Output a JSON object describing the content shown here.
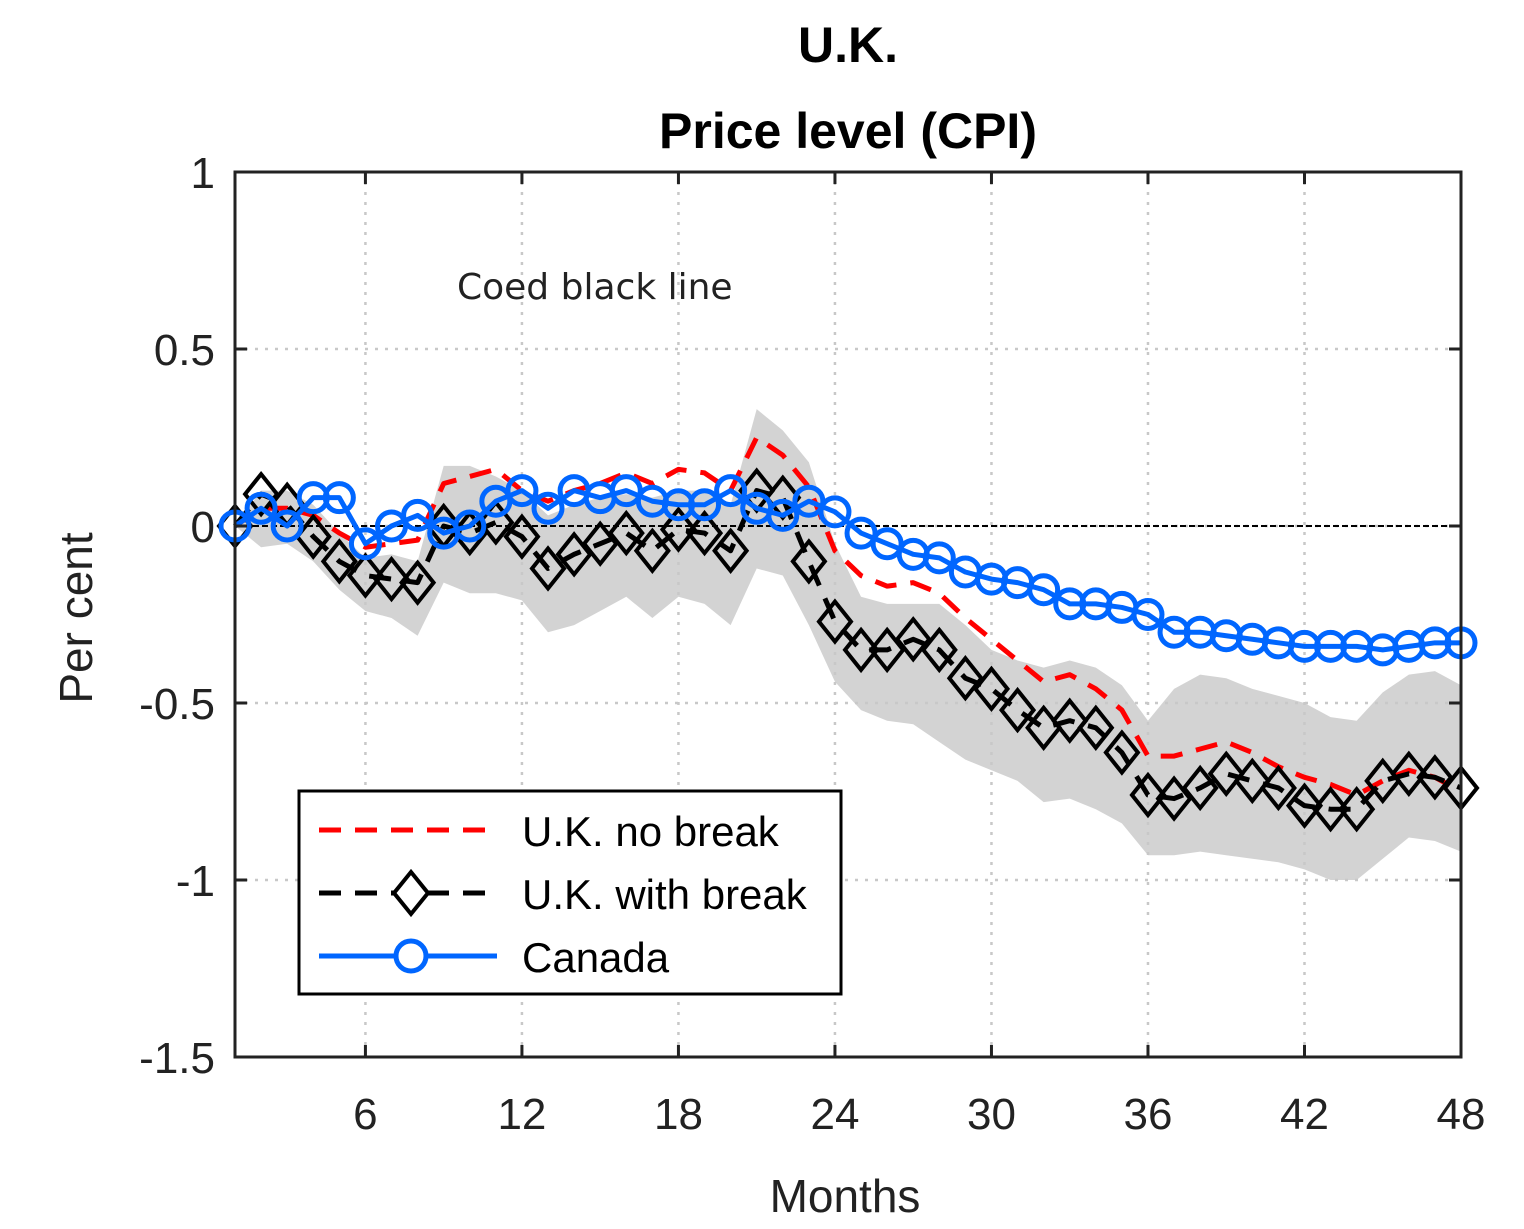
{
  "chart_data": {
    "type": "line",
    "title": [
      "U.K.",
      "Price level (CPI)"
    ],
    "xlabel": "Months",
    "ylabel": "Per cent",
    "xlim": [
      1,
      48
    ],
    "ylim": [
      -1.5,
      1
    ],
    "xticks": [
      6,
      12,
      18,
      24,
      30,
      36,
      42,
      48
    ],
    "yticks": [
      1,
      0.5,
      0,
      -0.5,
      -1,
      -1.5
    ],
    "ytick_labels": [
      "1",
      "0.5",
      "0",
      "-0.5",
      "-1",
      "-1.5"
    ],
    "grid": true,
    "legend_position": "bottom-left",
    "annotation": "Coed black line",
    "x": [
      1,
      2,
      3,
      4,
      5,
      6,
      7,
      8,
      9,
      10,
      11,
      12,
      13,
      14,
      15,
      16,
      17,
      18,
      19,
      20,
      21,
      22,
      23,
      24,
      25,
      26,
      27,
      28,
      29,
      30,
      31,
      32,
      33,
      34,
      35,
      36,
      37,
      38,
      39,
      40,
      41,
      42,
      43,
      44,
      45,
      46,
      47,
      48
    ],
    "band": {
      "color": "#d3d3d3",
      "upper": [
        0.0,
        0.1,
        0.1,
        0.06,
        -0.02,
        -0.09,
        -0.08,
        -0.1,
        0.17,
        0.17,
        0.14,
        0.1,
        0.03,
        0.06,
        0.08,
        0.09,
        0.08,
        0.1,
        0.1,
        0.06,
        0.33,
        0.27,
        0.18,
        -0.05,
        -0.2,
        -0.22,
        -0.22,
        -0.22,
        -0.28,
        -0.35,
        -0.38,
        -0.4,
        -0.38,
        -0.4,
        -0.45,
        -0.55,
        -0.46,
        -0.42,
        -0.43,
        -0.46,
        -0.48,
        -0.5,
        -0.54,
        -0.55,
        -0.47,
        -0.42,
        -0.41,
        -0.45
      ],
      "lower": [
        0.0,
        -0.06,
        -0.05,
        -0.1,
        -0.18,
        -0.24,
        -0.26,
        -0.31,
        -0.16,
        -0.19,
        -0.19,
        -0.21,
        -0.3,
        -0.28,
        -0.24,
        -0.2,
        -0.26,
        -0.2,
        -0.22,
        -0.28,
        -0.12,
        -0.14,
        -0.28,
        -0.44,
        -0.52,
        -0.55,
        -0.56,
        -0.61,
        -0.66,
        -0.69,
        -0.72,
        -0.78,
        -0.77,
        -0.8,
        -0.84,
        -0.93,
        -0.93,
        -0.92,
        -0.93,
        -0.94,
        -0.95,
        -0.97,
        -1.0,
        -1.0,
        -0.94,
        -0.88,
        -0.89,
        -0.92
      ]
    },
    "zero_line": 0,
    "series": [
      {
        "name": "U.K. no break",
        "color": "#ff0000",
        "style": "dashed",
        "marker": "none",
        "values": [
          0.0,
          0.05,
          0.05,
          0.03,
          -0.02,
          -0.06,
          -0.05,
          -0.04,
          0.12,
          0.14,
          0.16,
          0.1,
          0.07,
          0.1,
          0.12,
          0.15,
          0.12,
          0.16,
          0.15,
          0.1,
          0.25,
          0.2,
          0.11,
          -0.07,
          -0.14,
          -0.17,
          -0.16,
          -0.19,
          -0.26,
          -0.32,
          -0.38,
          -0.44,
          -0.42,
          -0.46,
          -0.52,
          -0.65,
          -0.65,
          -0.63,
          -0.61,
          -0.64,
          -0.68,
          -0.71,
          -0.73,
          -0.76,
          -0.72,
          -0.69,
          -0.71,
          -0.75
        ]
      },
      {
        "name": "U.K. with break",
        "color": "#000000",
        "style": "dashed",
        "marker": "diamond",
        "values": [
          0.0,
          0.09,
          0.06,
          -0.03,
          -0.1,
          -0.14,
          -0.15,
          -0.16,
          0.0,
          -0.02,
          0.01,
          -0.03,
          -0.12,
          -0.08,
          -0.05,
          -0.02,
          -0.07,
          -0.01,
          -0.02,
          -0.07,
          0.1,
          0.08,
          -0.1,
          -0.27,
          -0.35,
          -0.35,
          -0.32,
          -0.35,
          -0.43,
          -0.46,
          -0.52,
          -0.57,
          -0.55,
          -0.57,
          -0.64,
          -0.76,
          -0.77,
          -0.74,
          -0.7,
          -0.72,
          -0.74,
          -0.79,
          -0.8,
          -0.8,
          -0.72,
          -0.7,
          -0.71,
          -0.74
        ]
      },
      {
        "name": "Canada",
        "color": "#0066ff",
        "style": "solid",
        "marker": "circle",
        "values": [
          0.0,
          0.05,
          0.0,
          0.08,
          0.08,
          -0.05,
          0.0,
          0.03,
          -0.02,
          0.0,
          0.07,
          0.1,
          0.05,
          0.1,
          0.08,
          0.1,
          0.07,
          0.06,
          0.06,
          0.1,
          0.05,
          0.03,
          0.07,
          0.04,
          -0.02,
          -0.05,
          -0.08,
          -0.09,
          -0.13,
          -0.15,
          -0.16,
          -0.18,
          -0.22,
          -0.22,
          -0.23,
          -0.25,
          -0.3,
          -0.3,
          -0.31,
          -0.32,
          -0.33,
          -0.34,
          -0.34,
          -0.34,
          -0.35,
          -0.34,
          -0.33,
          -0.33
        ]
      }
    ]
  }
}
